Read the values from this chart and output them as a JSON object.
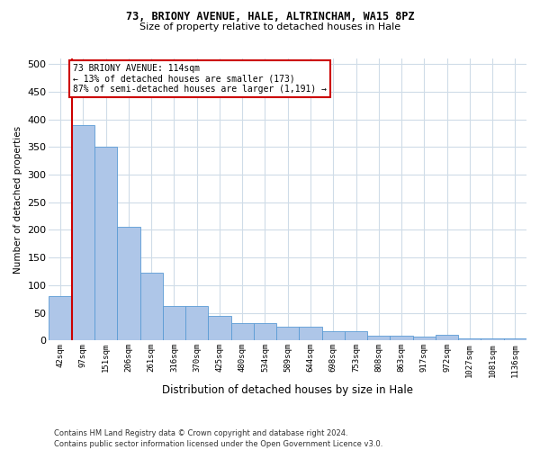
{
  "title1": "73, BRIONY AVENUE, HALE, ALTRINCHAM, WA15 8PZ",
  "title2": "Size of property relative to detached houses in Hale",
  "xlabel": "Distribution of detached houses by size in Hale",
  "ylabel": "Number of detached properties",
  "categories": [
    "42sqm",
    "97sqm",
    "151sqm",
    "206sqm",
    "261sqm",
    "316sqm",
    "370sqm",
    "425sqm",
    "480sqm",
    "534sqm",
    "589sqm",
    "644sqm",
    "698sqm",
    "753sqm",
    "808sqm",
    "863sqm",
    "917sqm",
    "972sqm",
    "1027sqm",
    "1081sqm",
    "1136sqm"
  ],
  "values": [
    80,
    390,
    350,
    205,
    123,
    63,
    63,
    44,
    31,
    31,
    25,
    25,
    16,
    16,
    9,
    9,
    7,
    10,
    3,
    3,
    3
  ],
  "highlight_index": 1,
  "bar_color": "#aec6e8",
  "bar_edge_color": "#5a9bd5",
  "highlight_line_color": "#cc0000",
  "annotation_box_edgecolor": "#cc0000",
  "annotation_line1": "73 BRIONY AVENUE: 114sqm",
  "annotation_line2": "← 13% of detached houses are smaller (173)",
  "annotation_line3": "87% of semi-detached houses are larger (1,191) →",
  "ylim_max": 510,
  "yticks": [
    0,
    50,
    100,
    150,
    200,
    250,
    300,
    350,
    400,
    450,
    500
  ],
  "footer1": "Contains HM Land Registry data © Crown copyright and database right 2024.",
  "footer2": "Contains public sector information licensed under the Open Government Licence v3.0.",
  "background_color": "#ffffff",
  "grid_color": "#cfdce8",
  "fig_width": 6.0,
  "fig_height": 5.0,
  "dpi": 100
}
